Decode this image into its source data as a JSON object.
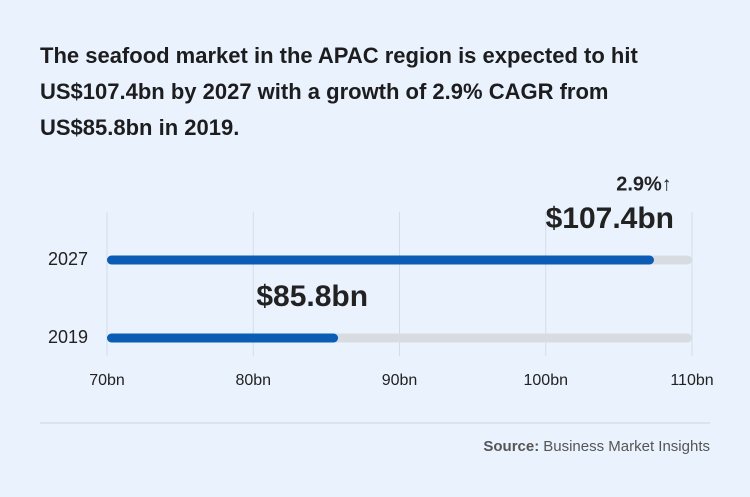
{
  "chart_data": {
    "type": "bar",
    "orientation": "horizontal",
    "title": "The seafood market in the APAC region is expected to hit US$107.4bn by 2027 with a growth of 2.9% CAGR from US$85.8bn in 2019.",
    "categories": [
      "2027",
      "2019"
    ],
    "values": [
      107.4,
      85.8
    ],
    "value_labels": [
      "$107.4bn",
      "$85.8bn"
    ],
    "color": "#0b5cb5",
    "track_color": "#d8dce1",
    "annotation": "2.9%↑",
    "annotation_color": "#1a66b8",
    "xlim": [
      70,
      110
    ],
    "xticks": [
      {
        "value": 70,
        "label": "70bn"
      },
      {
        "value": 80,
        "label": "80bn"
      },
      {
        "value": 90,
        "label": "90bn"
      },
      {
        "value": 100,
        "label": "100bn"
      },
      {
        "value": 110,
        "label": "110bn"
      }
    ],
    "grid": true,
    "source_label": "Source:",
    "source": "Business Market Insights"
  }
}
